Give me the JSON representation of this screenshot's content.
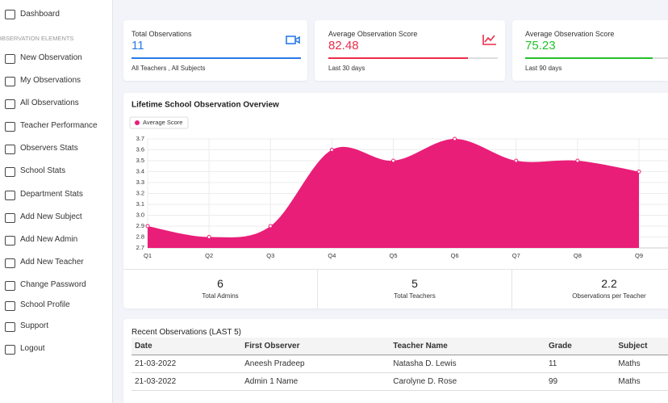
{
  "sidebar": {
    "top": "Dashboard",
    "section": "OBSERVATION ELEMENTS",
    "items": [
      "New Observation",
      "My Observations",
      "All Observations",
      "Teacher Performance",
      "Observers Stats",
      "School Stats",
      "Department Stats",
      "Add New Subject",
      "Add New Admin",
      "Add New Teacher",
      "Change Password",
      "School Profile",
      "Support",
      "Logout"
    ]
  },
  "cards": [
    {
      "title": "Total Observations",
      "value": 11,
      "subtitle": "All Teachers , All Subjects",
      "color": "#2979e8"
    },
    {
      "title": "Average Observation Score",
      "value": 82.48,
      "subtitle": "Last 30 days",
      "color": "#ec2c49"
    },
    {
      "title": "Average Observation Score",
      "value": 75.23,
      "subtitle": "Last 90 days",
      "color": "#23c02a"
    }
  ],
  "chart_data": {
    "type": "area",
    "title": "Lifetime School Observation Overview",
    "categories": [
      "Q1",
      "Q2",
      "Q3",
      "Q4",
      "Q5",
      "Q6",
      "Q7",
      "Q8",
      "Q9"
    ],
    "series": [
      {
        "name": "Average Score",
        "color": "#e91e78",
        "values": [
          2.9,
          2.8,
          2.9,
          3.6,
          3.5,
          3.7,
          3.5,
          3.5,
          3.4
        ]
      }
    ],
    "ylim": [
      2.7,
      3.7
    ],
    "yticks": [
      2.7,
      2.8,
      2.9,
      {
        "value": 3,
        "label": "3.0"
      },
      3.1,
      3.2,
      3.3,
      3.4,
      3.5,
      3.6,
      3.7
    ],
    "grid": true,
    "legend": "top-left"
  },
  "summary": [
    {
      "value": 6,
      "label": "Total Admins"
    },
    {
      "value": 5,
      "label": "Total Teachers"
    },
    {
      "value": 2.2,
      "label": "Observations per Teacher"
    }
  ],
  "table": {
    "title": "Recent Observations (LAST 5)",
    "header": [
      "Date",
      "First Observer",
      "Teacher Name",
      "Grade",
      "Subject"
    ],
    "rows": [
      [
        "21-03-2022",
        "Aneesh Pradeep",
        "Natasha D. Lewis",
        11,
        "Maths"
      ],
      [
        "21-03-2022",
        "Admin 1 Name",
        "Carolyne D. Rose",
        99,
        "Maths"
      ]
    ]
  }
}
